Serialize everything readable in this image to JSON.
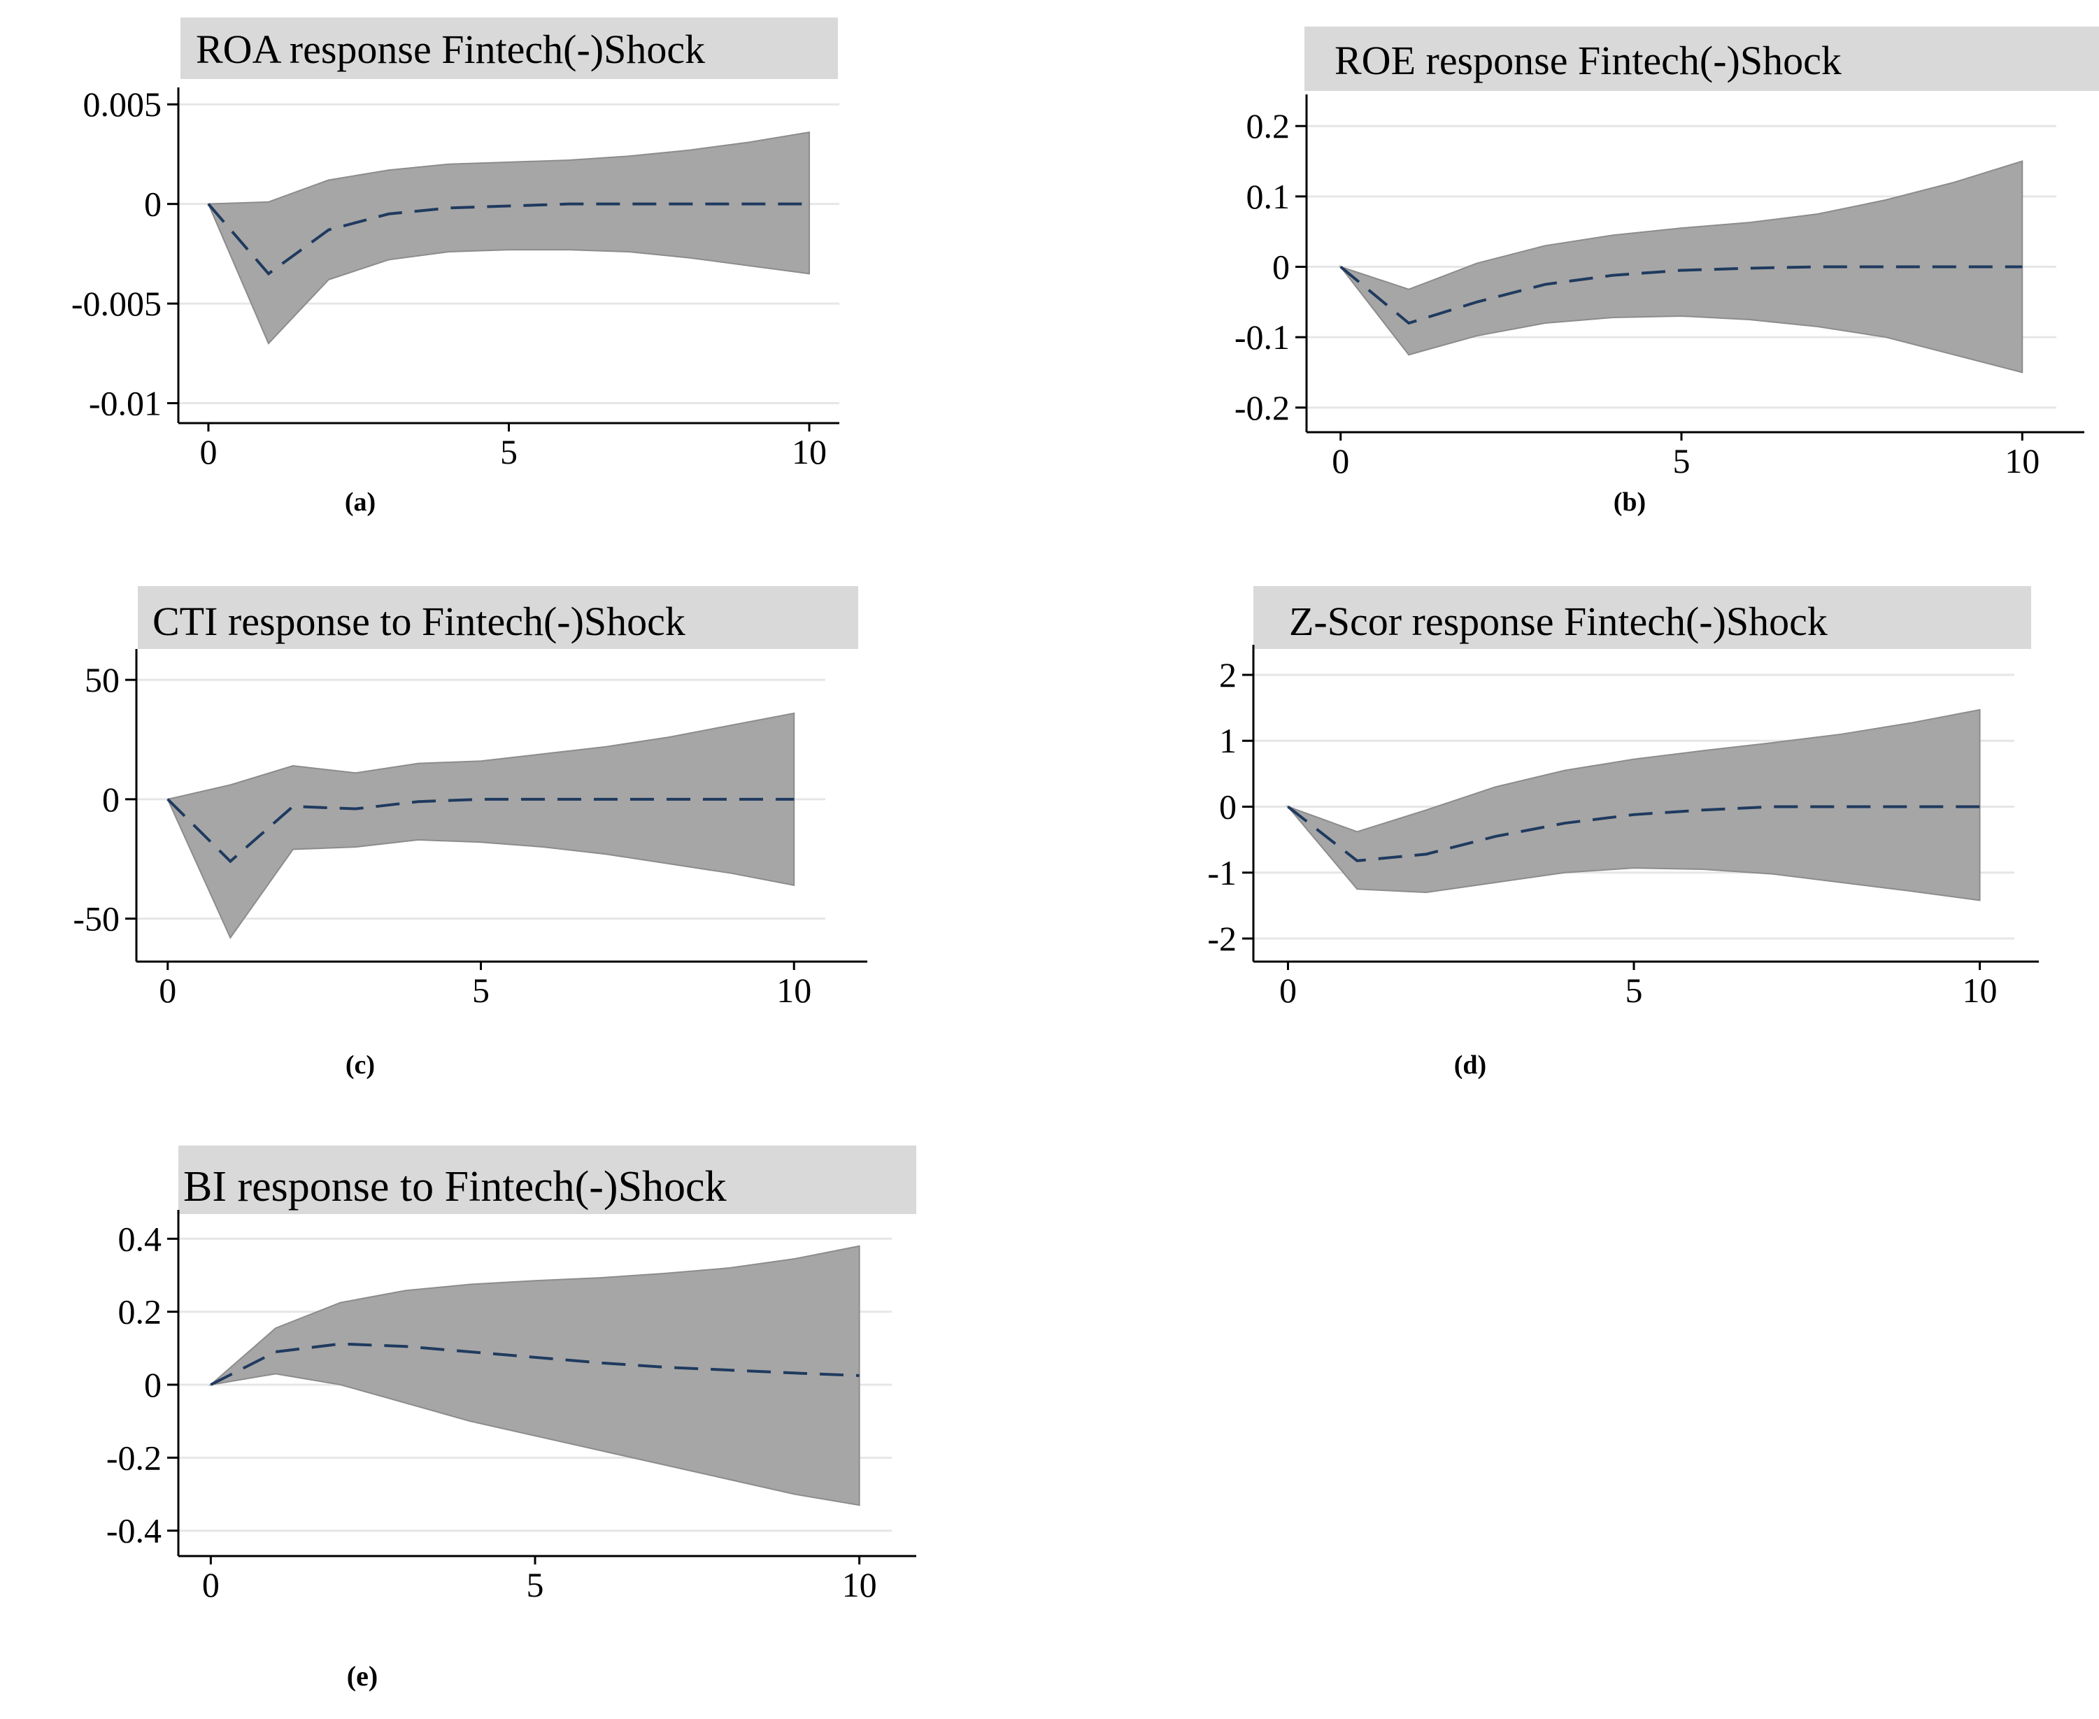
{
  "figure": {
    "panels": [
      "a",
      "b",
      "c",
      "d",
      "e"
    ]
  },
  "colors": {
    "band": "#a6a6a6",
    "band_edge": "#8c8c8c",
    "line": "#1f3a5f",
    "grid": "#e6e6e6",
    "title_bg": "#d9d9d9",
    "axis": "#000000"
  },
  "chart_data": [
    {
      "type": "area",
      "panel_label": "(a)",
      "title": "ROA response Fintech(-)Shock",
      "xlabel": "",
      "ylabel": "",
      "x": [
        0,
        1,
        2,
        3,
        4,
        5,
        6,
        7,
        8,
        9,
        10
      ],
      "xticks": [
        0,
        5,
        10
      ],
      "xtick_labels": [
        "0",
        "5",
        "10"
      ],
      "xlim": [
        -0.5,
        10.5
      ],
      "yticks": [
        0.005,
        0,
        -0.005,
        -0.01
      ],
      "ytick_labels": [
        "0.005",
        "0",
        "-0.005",
        "-0.01"
      ],
      "ylim": [
        -0.011,
        0.0055
      ],
      "series": [
        {
          "name": "irf",
          "values": [
            0,
            -0.0035,
            -0.0013,
            -0.0005,
            -0.0002,
            -0.0001,
            0,
            0,
            0,
            0,
            0
          ]
        },
        {
          "name": "lower",
          "values": [
            0,
            -0.007,
            -0.0038,
            -0.0028,
            -0.0024,
            -0.0023,
            -0.0023,
            -0.0024,
            -0.0027,
            -0.0031,
            -0.0035
          ]
        },
        {
          "name": "upper",
          "values": [
            0,
            0.0001,
            0.0012,
            0.0017,
            0.002,
            0.0021,
            0.0022,
            0.0024,
            0.0027,
            0.0031,
            0.0036
          ]
        }
      ]
    },
    {
      "type": "area",
      "panel_label": "(b)",
      "title": "ROE response Fintech(-)Shock",
      "xlabel": "",
      "ylabel": "",
      "x": [
        0,
        1,
        2,
        3,
        4,
        5,
        6,
        7,
        8,
        9,
        10
      ],
      "xticks": [
        0,
        5,
        10
      ],
      "xtick_labels": [
        "0",
        "5",
        "10"
      ],
      "xlim": [
        -0.5,
        10.5
      ],
      "yticks": [
        0.2,
        0.1,
        0,
        -0.1,
        -0.2
      ],
      "ytick_labels": [
        "0.2",
        "0.1",
        "0",
        "-0.1",
        "-0.2"
      ],
      "ylim": [
        -0.235,
        0.235
      ],
      "series": [
        {
          "name": "irf",
          "values": [
            0,
            -0.08,
            -0.05,
            -0.025,
            -0.012,
            -0.005,
            -0.002,
            0,
            0,
            0,
            0
          ]
        },
        {
          "name": "lower",
          "values": [
            0,
            -0.125,
            -0.098,
            -0.08,
            -0.072,
            -0.07,
            -0.075,
            -0.085,
            -0.1,
            -0.125,
            -0.15
          ]
        },
        {
          "name": "upper",
          "values": [
            0,
            -0.032,
            0.005,
            0.03,
            0.045,
            0.055,
            0.063,
            0.075,
            0.095,
            0.12,
            0.15
          ]
        }
      ]
    },
    {
      "type": "area",
      "panel_label": "(c)",
      "title": "CTI response to Fintech(-)Shock",
      "xlabel": "",
      "ylabel": "",
      "x": [
        0,
        1,
        2,
        3,
        4,
        5,
        6,
        7,
        8,
        9,
        10
      ],
      "xticks": [
        0,
        5,
        10
      ],
      "xtick_labels": [
        "0",
        "5",
        "10"
      ],
      "xlim": [
        -0.5,
        10.5
      ],
      "yticks": [
        50,
        0,
        -50
      ],
      "ytick_labels": [
        "50",
        "0",
        "-50"
      ],
      "ylim": [
        -68,
        60
      ],
      "series": [
        {
          "name": "irf",
          "values": [
            0,
            -26,
            -3,
            -4,
            -1,
            0,
            0,
            0,
            0,
            0,
            0
          ]
        },
        {
          "name": "lower",
          "values": [
            0,
            -58,
            -21,
            -20,
            -17,
            -18,
            -20,
            -23,
            -27,
            -31,
            -36
          ]
        },
        {
          "name": "upper",
          "values": [
            0,
            6,
            14,
            11,
            15,
            16,
            19,
            22,
            26,
            31,
            36
          ]
        }
      ]
    },
    {
      "type": "area",
      "panel_label": "(d)",
      "title": "Z-Scor response Fintech(-)Shock",
      "xlabel": "",
      "ylabel": "",
      "x": [
        0,
        1,
        2,
        3,
        4,
        5,
        6,
        7,
        8,
        9,
        10
      ],
      "xticks": [
        0,
        5,
        10
      ],
      "xtick_labels": [
        "0",
        "5",
        "10"
      ],
      "xlim": [
        -0.5,
        10.5
      ],
      "yticks": [
        2,
        1,
        0,
        -1,
        -2
      ],
      "ytick_labels": [
        "2",
        "1",
        "0",
        "-1",
        "-2"
      ],
      "ylim": [
        -2.35,
        2.35
      ],
      "series": [
        {
          "name": "irf",
          "values": [
            0,
            -0.82,
            -0.72,
            -0.45,
            -0.25,
            -0.12,
            -0.05,
            0,
            0,
            0,
            0
          ]
        },
        {
          "name": "lower",
          "values": [
            0,
            -1.25,
            -1.3,
            -1.15,
            -1.0,
            -0.93,
            -0.95,
            -1.02,
            -1.15,
            -1.28,
            -1.42
          ]
        },
        {
          "name": "upper",
          "values": [
            0,
            -0.38,
            -0.05,
            0.3,
            0.55,
            0.72,
            0.85,
            0.97,
            1.1,
            1.27,
            1.47
          ]
        }
      ]
    },
    {
      "type": "area",
      "panel_label": "(e)",
      "title": "BI response to Fintech(-)Shock",
      "xlabel": "",
      "ylabel": "",
      "x": [
        0,
        1,
        2,
        3,
        4,
        5,
        6,
        7,
        8,
        9,
        10
      ],
      "xticks": [
        0,
        5,
        10
      ],
      "xtick_labels": [
        "0",
        "5",
        "10"
      ],
      "xlim": [
        -0.5,
        10.5
      ],
      "yticks": [
        0.4,
        0.2,
        0,
        -0.2,
        -0.4
      ],
      "ytick_labels": [
        "0.4",
        "0.2",
        "0",
        "-0.2",
        "-0.4"
      ],
      "ylim": [
        -0.46,
        0.46
      ],
      "series": [
        {
          "name": "irf",
          "values": [
            0,
            0.09,
            0.112,
            0.105,
            0.09,
            0.075,
            0.06,
            0.048,
            0.04,
            0.032,
            0.025
          ]
        },
        {
          "name": "lower",
          "values": [
            0,
            0.03,
            0.0,
            -0.05,
            -0.1,
            -0.14,
            -0.18,
            -0.22,
            -0.26,
            -0.3,
            -0.33
          ]
        },
        {
          "name": "upper",
          "values": [
            0,
            0.155,
            0.225,
            0.258,
            0.275,
            0.285,
            0.293,
            0.305,
            0.32,
            0.345,
            0.38
          ]
        }
      ]
    }
  ]
}
